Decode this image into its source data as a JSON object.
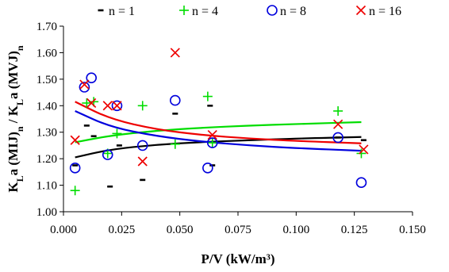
{
  "chart_data": {
    "type": "scatter",
    "xlabel": "P/V (kW/m³)",
    "ylabel": "KLa (MIJ)n / KLa (MVJ)n",
    "xlim": [
      0.0,
      0.15
    ],
    "ylim": [
      1.0,
      1.7
    ],
    "xticks": [
      "0.000",
      "0.025",
      "0.050",
      "0.075",
      "0.100",
      "0.125",
      "0.150"
    ],
    "yticks": [
      "1.00",
      "1.10",
      "1.20",
      "1.30",
      "1.40",
      "1.50",
      "1.60",
      "1.70"
    ],
    "grid": false,
    "legend_position": "top",
    "series": [
      {
        "name": "n = 1",
        "marker": "dash",
        "color": "#000000",
        "x": [
          0.005,
          0.01,
          0.013,
          0.02,
          0.024,
          0.034,
          0.048,
          0.063,
          0.064,
          0.118,
          0.129
        ],
        "y": [
          1.175,
          1.325,
          1.285,
          1.095,
          1.25,
          1.12,
          1.37,
          1.4,
          1.175,
          1.28,
          1.27
        ],
        "trend": [
          [
            0.005,
            1.205
          ],
          [
            0.02,
            1.235
          ],
          [
            0.04,
            1.253
          ],
          [
            0.06,
            1.263
          ],
          [
            0.08,
            1.27
          ],
          [
            0.1,
            1.276
          ],
          [
            0.128,
            1.282
          ]
        ]
      },
      {
        "name": "n = 4",
        "marker": "plus",
        "color": "#00dd00",
        "x": [
          0.005,
          0.01,
          0.013,
          0.019,
          0.023,
          0.034,
          0.048,
          0.062,
          0.064,
          0.118,
          0.128
        ],
        "y": [
          1.08,
          1.41,
          1.415,
          1.22,
          1.295,
          1.4,
          1.255,
          1.435,
          1.26,
          1.38,
          1.22
        ],
        "trend": [
          [
            0.005,
            1.262
          ],
          [
            0.02,
            1.287
          ],
          [
            0.04,
            1.306
          ],
          [
            0.06,
            1.317
          ],
          [
            0.08,
            1.325
          ],
          [
            0.1,
            1.331
          ],
          [
            0.128,
            1.338
          ]
        ]
      },
      {
        "name": "n = 8",
        "marker": "circle",
        "color": "#0000dd",
        "x": [
          0.005,
          0.009,
          0.012,
          0.019,
          0.023,
          0.034,
          0.048,
          0.062,
          0.064,
          0.118,
          0.128
        ],
        "y": [
          1.165,
          1.47,
          1.505,
          1.215,
          1.4,
          1.25,
          1.42,
          1.165,
          1.26,
          1.28,
          1.11
        ],
        "trend": [
          [
            0.005,
            1.38
          ],
          [
            0.02,
            1.32
          ],
          [
            0.04,
            1.285
          ],
          [
            0.06,
            1.264
          ],
          [
            0.08,
            1.25
          ],
          [
            0.1,
            1.24
          ],
          [
            0.128,
            1.23
          ]
        ]
      },
      {
        "name": "n = 16",
        "marker": "x",
        "color": "#ee0000",
        "x": [
          0.005,
          0.009,
          0.012,
          0.019,
          0.023,
          0.034,
          0.048,
          0.064,
          0.118,
          0.129
        ],
        "y": [
          1.27,
          1.48,
          1.41,
          1.4,
          1.4,
          1.19,
          1.6,
          1.29,
          1.33,
          1.235
        ],
        "trend": [
          [
            0.005,
            1.415
          ],
          [
            0.02,
            1.35
          ],
          [
            0.04,
            1.31
          ],
          [
            0.06,
            1.289
          ],
          [
            0.08,
            1.276
          ],
          [
            0.1,
            1.267
          ],
          [
            0.128,
            1.258
          ]
        ]
      }
    ]
  }
}
